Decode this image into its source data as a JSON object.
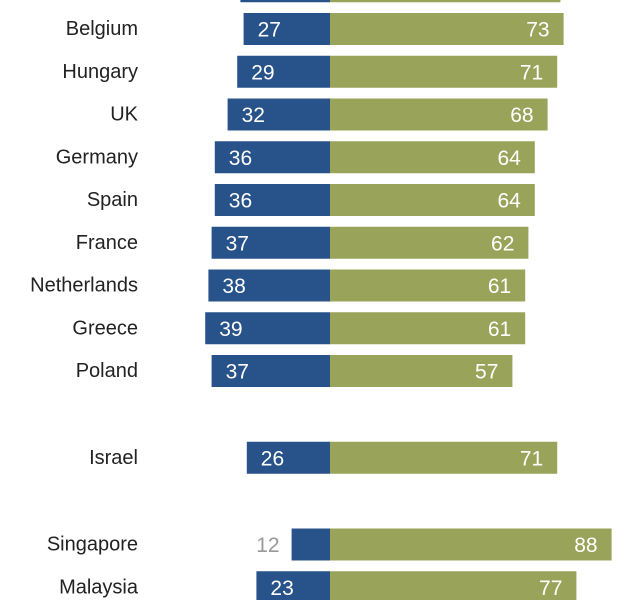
{
  "chart_data": {
    "type": "bar",
    "orientation": "horizontal-diverging",
    "title": "",
    "xlabel": "",
    "ylabel": "",
    "colors": {
      "left": "#27538a",
      "right": "#99a45a"
    },
    "leading_partial_row": {
      "left": 28,
      "right": 72
    },
    "groups": [
      {
        "categories": [
          "Belgium",
          "Hungary",
          "UK",
          "Germany",
          "Spain",
          "France",
          "Netherlands",
          "Greece",
          "Poland"
        ],
        "series": [
          {
            "name": "left",
            "values": [
              27,
              29,
              32,
              36,
              36,
              37,
              38,
              39,
              37
            ]
          },
          {
            "name": "right",
            "values": [
              73,
              71,
              68,
              64,
              64,
              62,
              61,
              61,
              57
            ]
          }
        ]
      },
      {
        "categories": [
          "Israel"
        ],
        "series": [
          {
            "name": "left",
            "values": [
              26
            ]
          },
          {
            "name": "right",
            "values": [
              71
            ]
          }
        ]
      },
      {
        "categories": [
          "Singapore",
          "Malaysia"
        ],
        "series": [
          {
            "name": "left",
            "values": [
              12,
              23
            ]
          },
          {
            "name": "right",
            "values": [
              88,
              77
            ]
          }
        ]
      }
    ]
  }
}
